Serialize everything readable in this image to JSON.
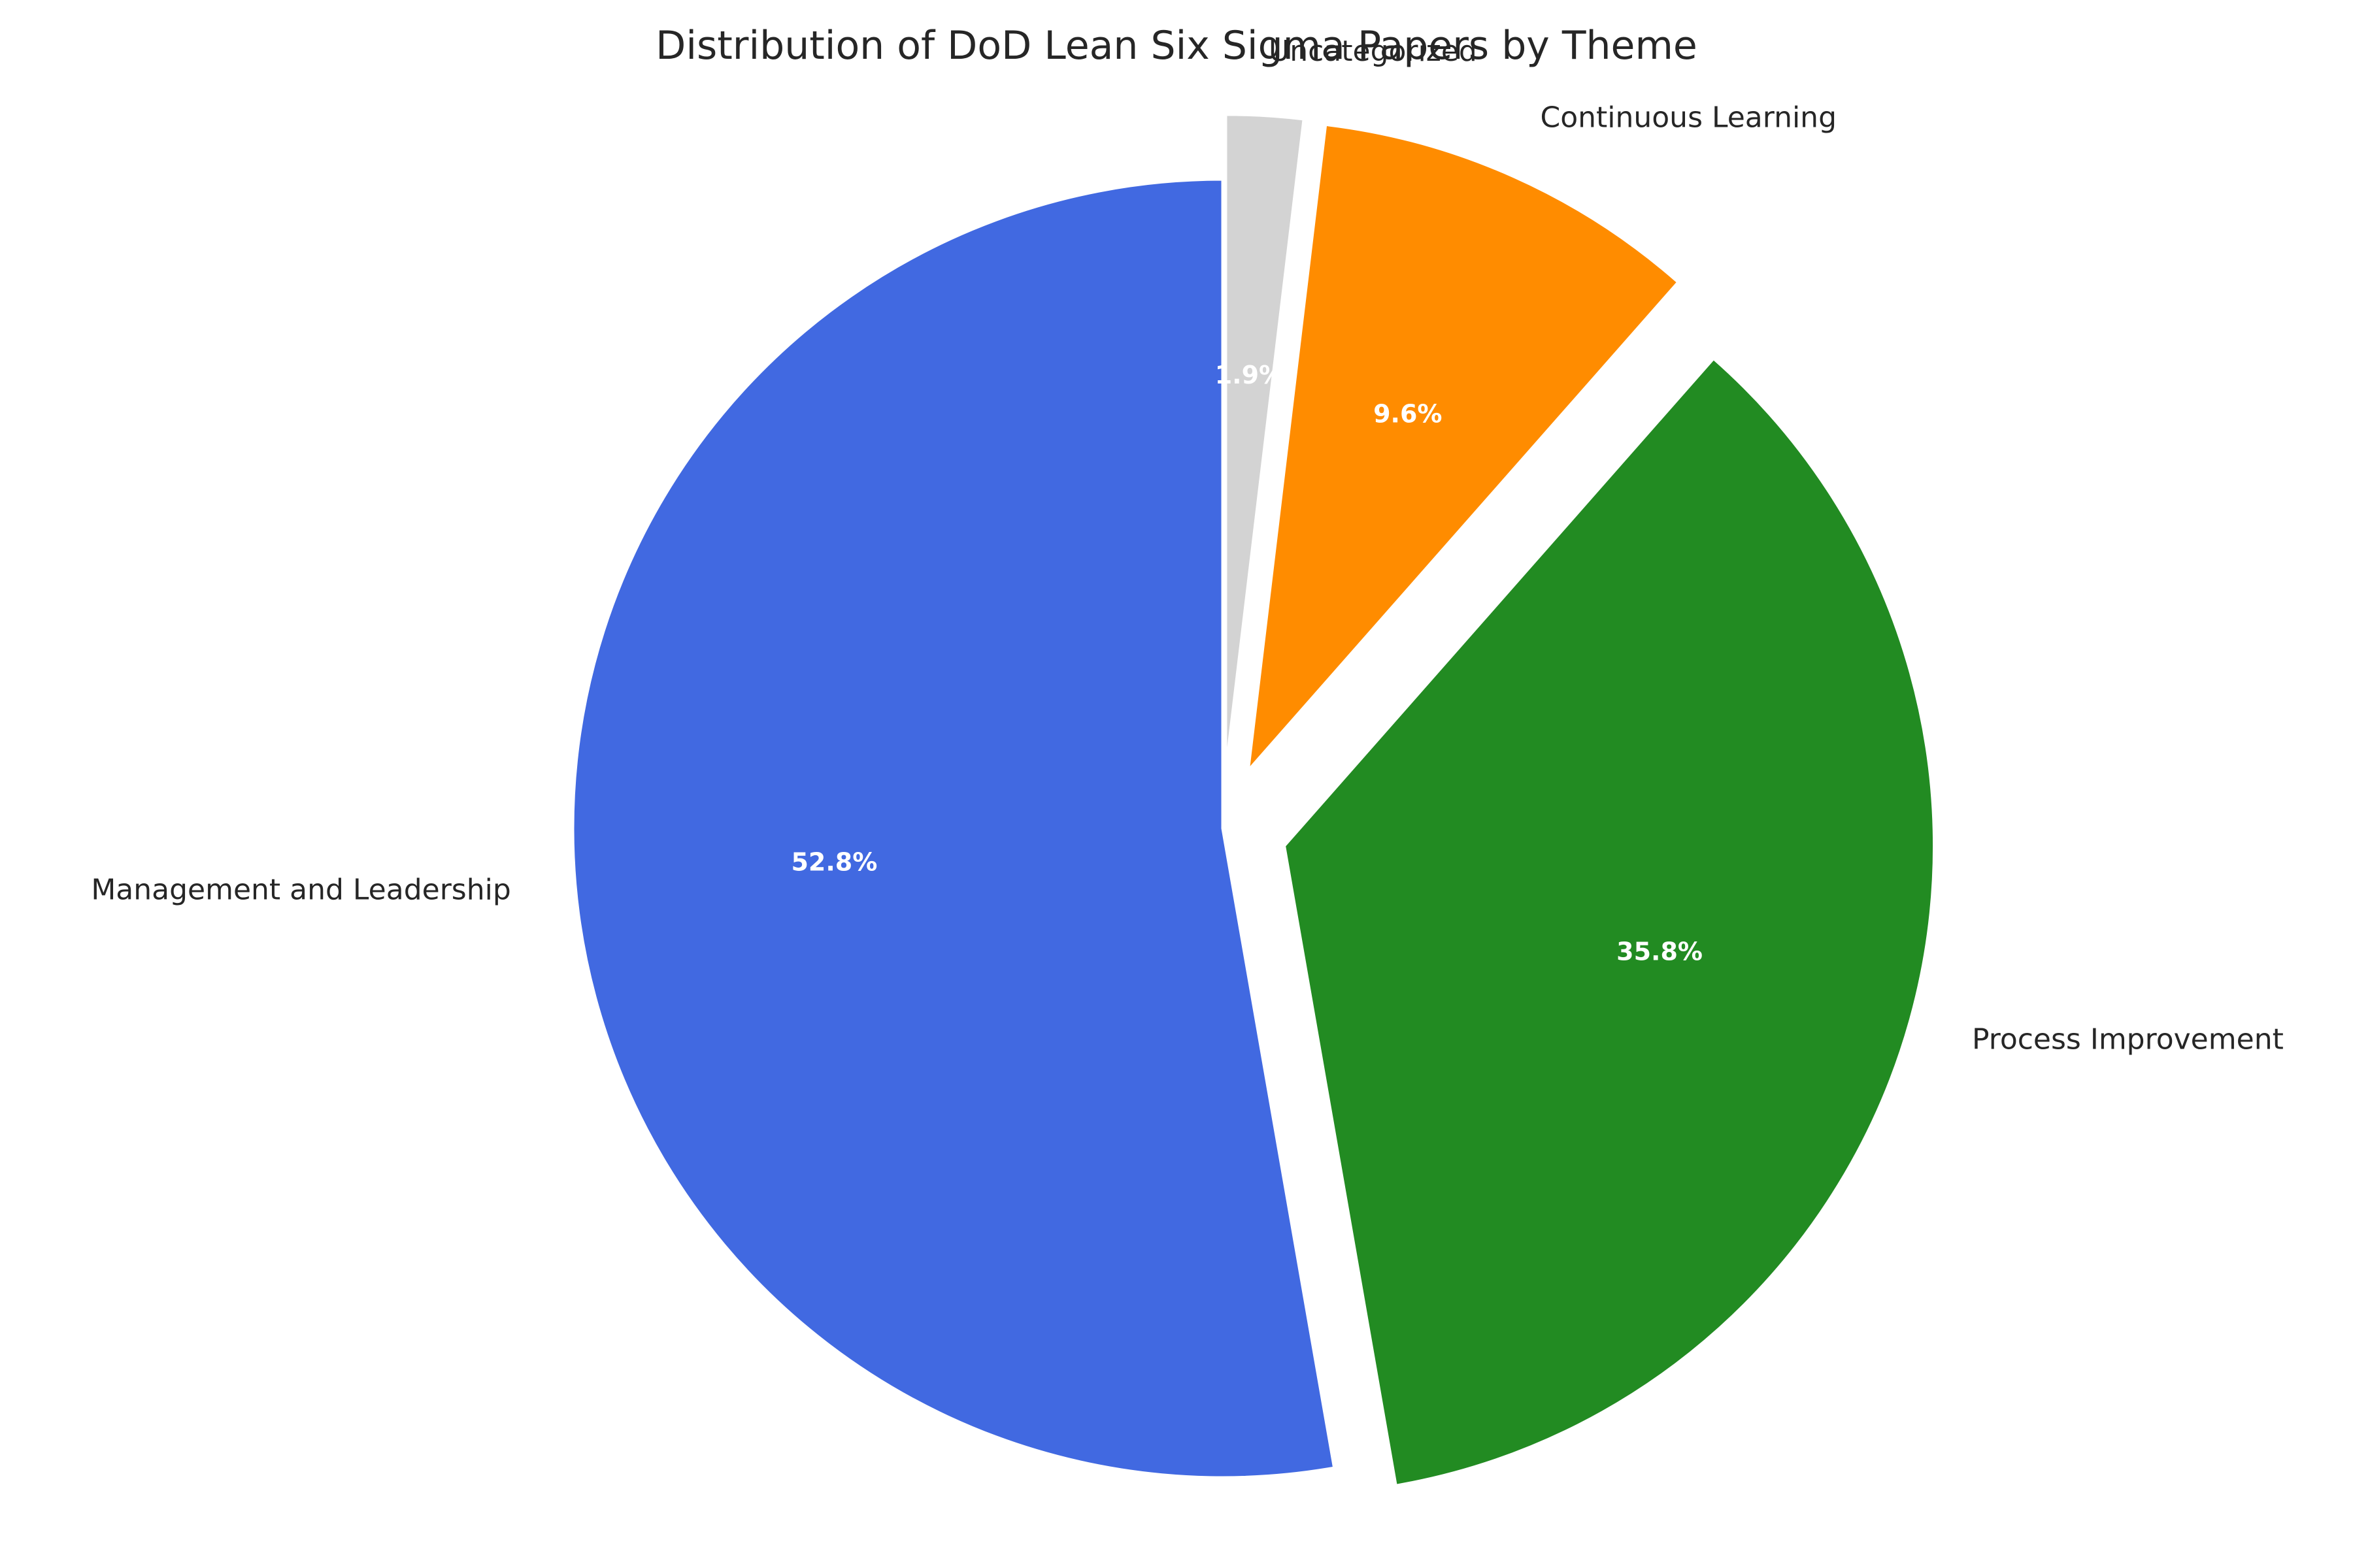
{
  "chart_data": {
    "type": "pie",
    "title": "Distribution of DoD Lean Six Sigma Papers by Theme",
    "start_angle_deg": 90,
    "direction": "clockwise",
    "categories": [
      "Uncategorized",
      "Continuous Learning",
      "Process Improvement",
      "Management and Leadership"
    ],
    "values": [
      1.9,
      9.6,
      35.8,
      52.8
    ],
    "pct_labels": [
      "1.9%",
      "9.6%",
      "35.8%",
      "52.8%"
    ],
    "colors": [
      "#d3d3d3",
      "#ff8c00",
      "#228b22",
      "#4169e1"
    ],
    "legend": "none"
  }
}
